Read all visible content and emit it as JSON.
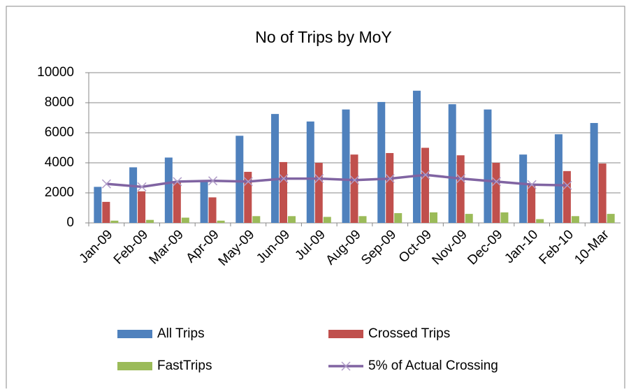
{
  "chart_data": {
    "type": "bar",
    "title": "No of Trips by MoY",
    "categories": [
      "Jan-09",
      "Feb-09",
      "Mar-09",
      "Apr-09",
      "May-09",
      "Jun-09",
      "Jul-09",
      "Aug-09",
      "Sep-09",
      "Oct-09",
      "Nov-09",
      "Dec-09",
      "Jan-10",
      "Feb-10",
      "10-Mar"
    ],
    "series": [
      {
        "name": "All Trips",
        "type": "bar",
        "color": "#4f81bd",
        "values": [
          2400,
          3700,
          4350,
          2800,
          5800,
          7250,
          6750,
          7550,
          8050,
          8800,
          7900,
          7550,
          4550,
          5900,
          6650
        ]
      },
      {
        "name": "Crossed Trips",
        "type": "bar",
        "color": "#c0504d",
        "values": [
          1400,
          2100,
          2750,
          1700,
          3400,
          4050,
          4000,
          4550,
          4650,
          5000,
          4500,
          4000,
          2500,
          3450,
          3950
        ]
      },
      {
        "name": "FastTrips",
        "type": "bar",
        "color": "#9bbb59",
        "values": [
          150,
          200,
          350,
          150,
          450,
          450,
          400,
          450,
          650,
          700,
          600,
          700,
          250,
          450,
          600
        ]
      },
      {
        "name": "5% of Actual Crossing",
        "type": "line",
        "color": "#8064a2",
        "values": [
          2600,
          2400,
          2750,
          2800,
          2750,
          2950,
          2950,
          2850,
          2950,
          3200,
          2950,
          2750,
          2550,
          2500,
          null
        ]
      }
    ],
    "ylim": [
      0,
      10000
    ],
    "yticks": [
      0,
      2000,
      4000,
      6000,
      8000,
      10000
    ],
    "grid": true,
    "legend": "bottom"
  }
}
